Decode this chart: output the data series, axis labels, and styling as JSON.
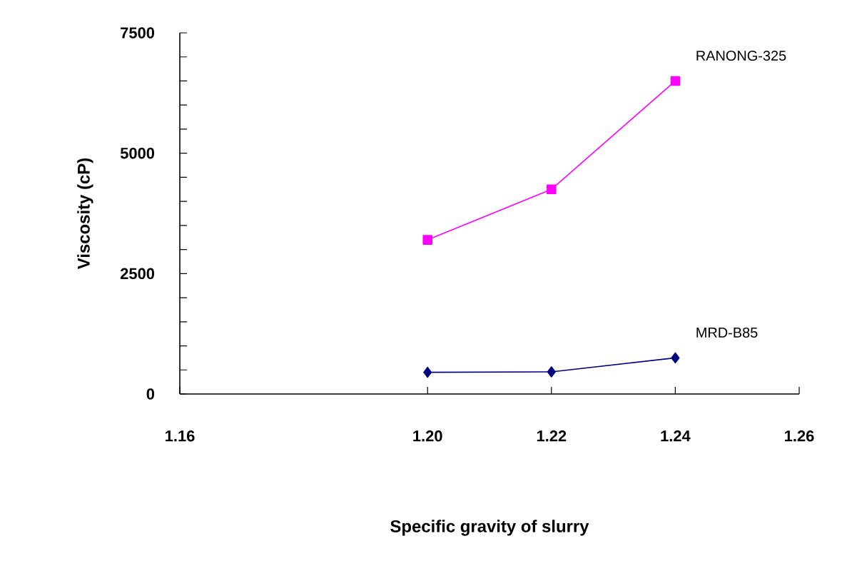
{
  "chart_data": {
    "type": "line",
    "xlabel": "Specific gravity of slurry",
    "ylabel": "Viscosity (cP)",
    "x": [
      1.2,
      1.22,
      1.24
    ],
    "series": [
      {
        "name": "RANONG-325",
        "color": "#ff00ff",
        "marker": "square",
        "values": [
          3200,
          4250,
          6500
        ]
      },
      {
        "name": "MRD-B85",
        "color": "#000080",
        "marker": "diamond",
        "values": [
          450,
          460,
          750
        ]
      }
    ],
    "xlim": [
      1.16,
      1.26
    ],
    "xticks": [
      {
        "value": 1.16,
        "label": "1.16"
      },
      {
        "value": 1.2,
        "label": "1.20"
      },
      {
        "value": 1.22,
        "label": "1.22"
      },
      {
        "value": 1.24,
        "label": "1.24"
      },
      {
        "value": 1.26,
        "label": "1.26"
      }
    ],
    "ylim": [
      0,
      7500
    ],
    "yticks": [
      0,
      {
        "value": 500,
        "label": null
      },
      {
        "value": 1000,
        "label": null
      },
      {
        "value": 1500,
        "label": null
      },
      {
        "value": 2000,
        "label": null
      },
      2500,
      {
        "value": 3000,
        "label": null
      },
      {
        "value": 3500,
        "label": null
      },
      {
        "value": 4000,
        "label": null
      },
      {
        "value": 4500,
        "label": null
      },
      5000,
      {
        "value": 5500,
        "label": null
      },
      {
        "value": 6000,
        "label": null
      },
      {
        "value": 6500,
        "label": null
      },
      {
        "value": 7000,
        "label": null
      },
      7500
    ]
  }
}
